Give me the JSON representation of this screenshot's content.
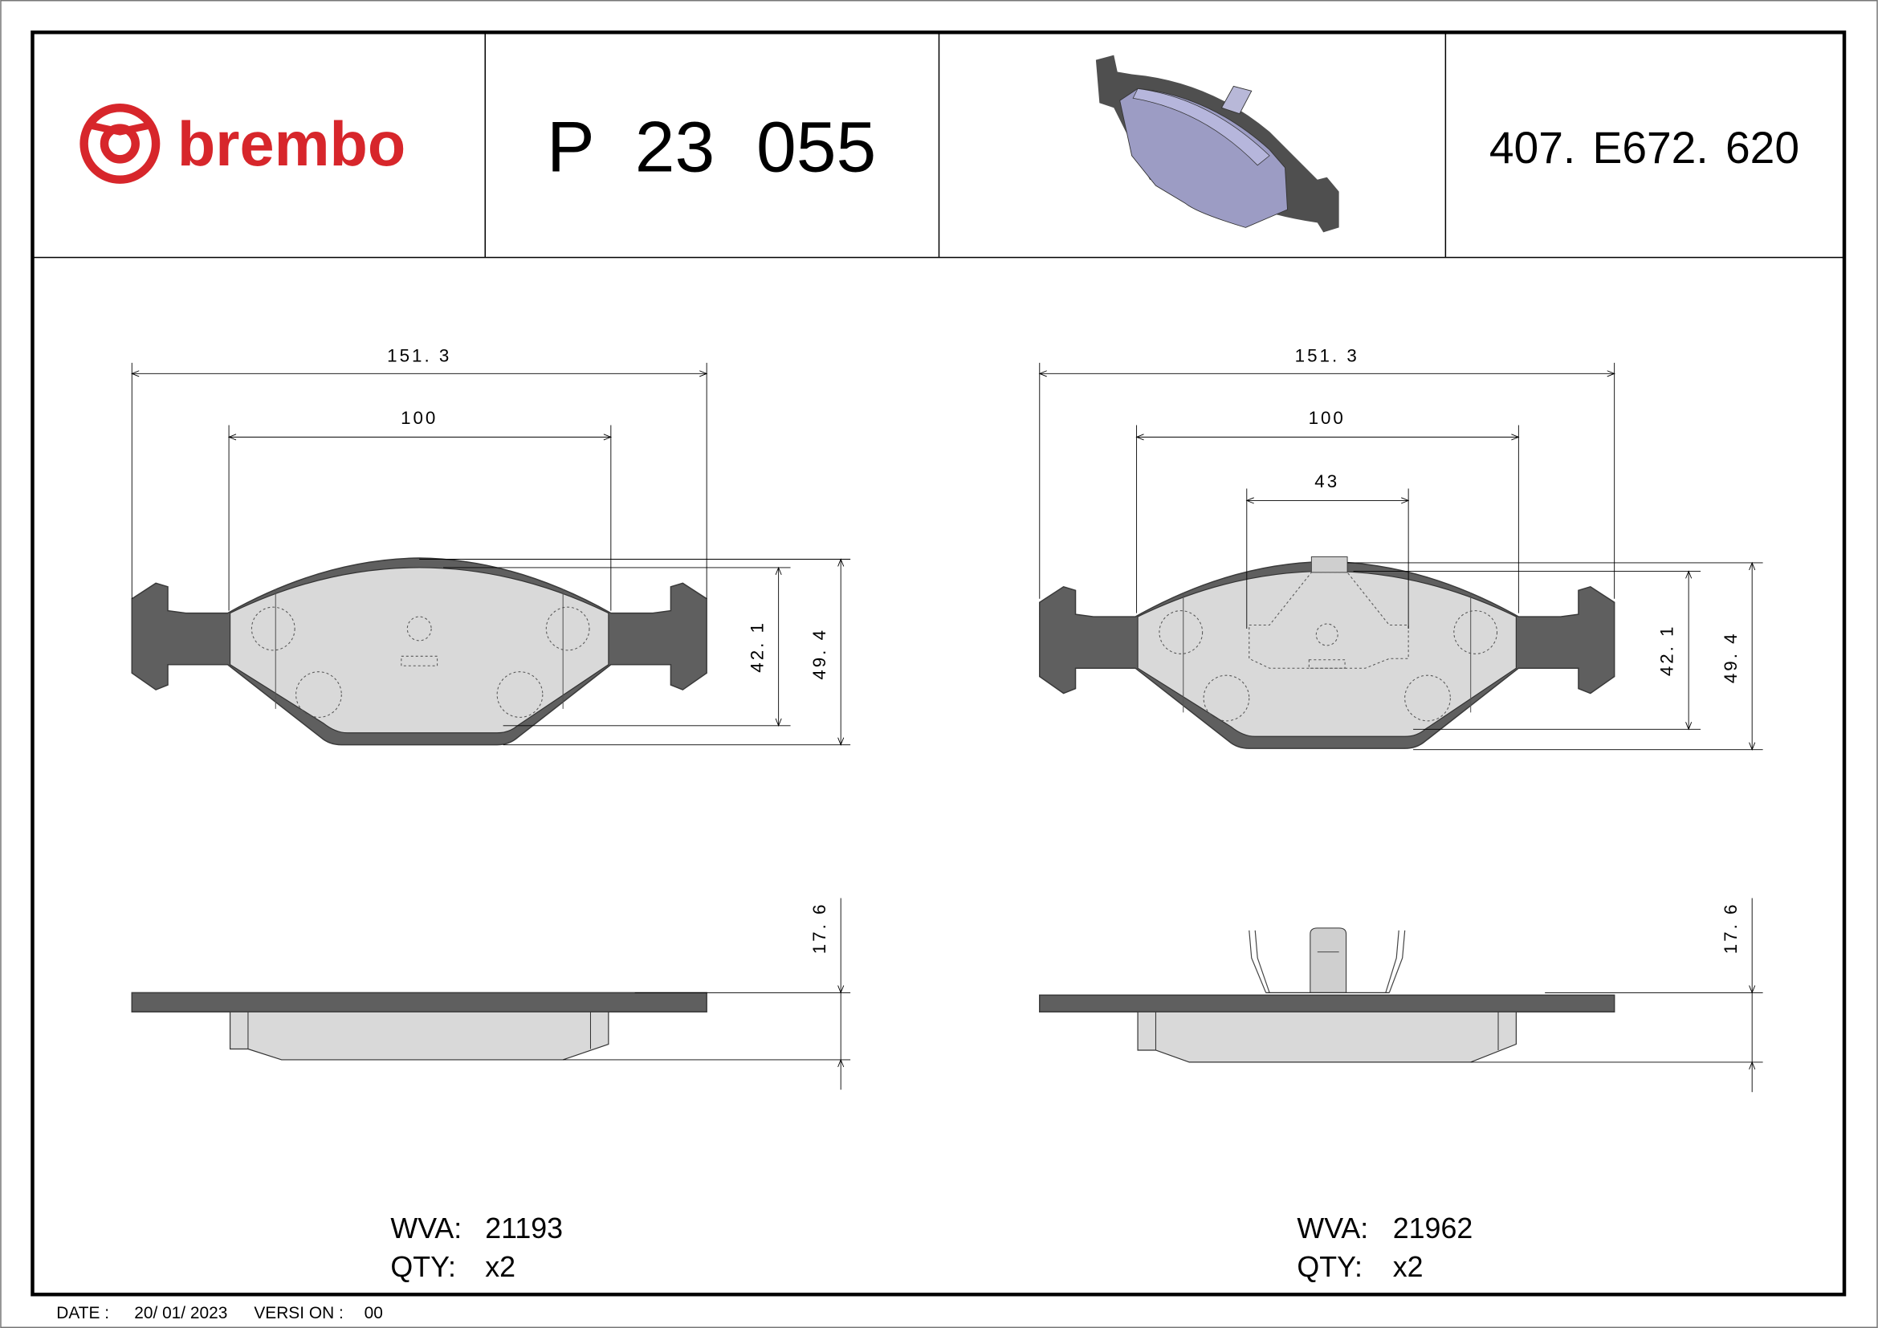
{
  "header": {
    "brand": "brembo",
    "part_number": "P 23 055",
    "reference": "407. E672. 620",
    "logo_color": "#d7262b",
    "preview_image": "brake-pad-3d-render"
  },
  "drawings": [
    {
      "dims": {
        "overall_width": "151. 3",
        "inner_width": "100",
        "height_friction": "42. 1",
        "height_total": "49. 4",
        "thickness": "17. 6"
      },
      "wva_label": "WVA:",
      "wva": "21193",
      "qty_label": "QTY:",
      "qty": "x2"
    },
    {
      "dims": {
        "overall_width": "151. 3",
        "inner_width": "100",
        "clip_width": "43",
        "height_friction": "42. 1",
        "height_total": "49. 4",
        "thickness": "17. 6"
      },
      "wva_label": "WVA:",
      "wva": "21962",
      "qty_label": "QTY:",
      "qty": "x2"
    }
  ],
  "footer": {
    "date_label": "DATE :",
    "date": "20/ 01/ 2023",
    "version_label": "VERSI ON :",
    "version": "00"
  }
}
